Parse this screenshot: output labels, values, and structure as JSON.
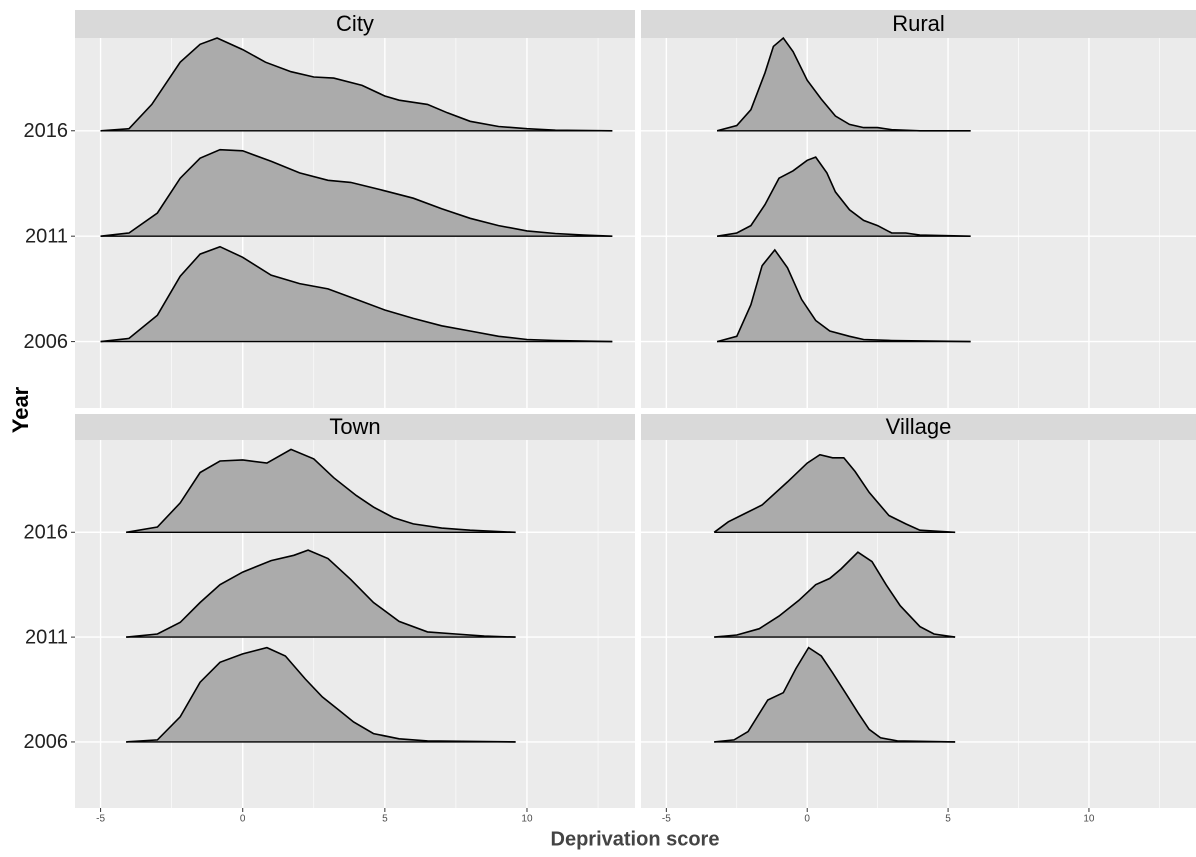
{
  "x_label": "Deprivation score",
  "y_label": "Year",
  "scales": {
    "xlim": [
      -5.9,
      13.8
    ],
    "xticks": [
      -5,
      0,
      5,
      10
    ],
    "xminor": [
      -2.5,
      2.5,
      7.5,
      12.5
    ],
    "ylim": [
      0.37,
      3.88
    ],
    "yticks": [
      {
        "value": 1,
        "label": "2006"
      },
      {
        "value": 2,
        "label": "2011"
      },
      {
        "value": 3,
        "label": "2016"
      }
    ],
    "fill": "#ababab",
    "line": "#000000"
  },
  "chart_data": [
    {
      "type": "ridgeline",
      "title": "City",
      "ridges": [
        {
          "y": 1,
          "x": [
            -5,
            -4,
            -3,
            -2.2,
            -1.5,
            -0.8,
            0,
            1,
            2,
            3,
            4,
            5,
            6,
            7,
            8,
            9,
            10,
            11,
            12,
            13
          ],
          "values": [
            0,
            0.03,
            0.25,
            0.62,
            0.83,
            0.9,
            0.8,
            0.63,
            0.55,
            0.5,
            0.4,
            0.3,
            0.22,
            0.15,
            0.1,
            0.05,
            0.02,
            0.01,
            0.005,
            0
          ]
        },
        {
          "y": 2,
          "x": [
            -5,
            -4,
            -3,
            -2.2,
            -1.5,
            -0.8,
            0,
            1,
            2,
            3,
            3.8,
            5,
            6,
            7,
            8,
            9,
            10,
            11,
            12,
            13
          ],
          "values": [
            0,
            0.03,
            0.22,
            0.55,
            0.74,
            0.82,
            0.81,
            0.71,
            0.6,
            0.53,
            0.51,
            0.43,
            0.36,
            0.26,
            0.17,
            0.1,
            0.05,
            0.025,
            0.01,
            0
          ]
        },
        {
          "y": 3,
          "x": [
            -5,
            -4,
            -3.2,
            -2.2,
            -1.5,
            -0.9,
            0,
            0.8,
            1.7,
            2.5,
            3.2,
            4.2,
            5,
            5.5,
            6.5,
            7.2,
            8,
            9,
            10,
            11,
            13
          ],
          "values": [
            0,
            0.02,
            0.25,
            0.65,
            0.82,
            0.88,
            0.77,
            0.65,
            0.56,
            0.51,
            0.5,
            0.43,
            0.33,
            0.29,
            0.25,
            0.17,
            0.09,
            0.04,
            0.02,
            0.005,
            0
          ]
        }
      ]
    },
    {
      "type": "ridgeline",
      "title": "Rural",
      "ridges": [
        {
          "y": 1,
          "x": [
            -3.2,
            -2.5,
            -2,
            -1.6,
            -1.15,
            -0.7,
            -0.2,
            0.3,
            0.8,
            1.5,
            2,
            3,
            5.8
          ],
          "values": [
            0,
            0.05,
            0.35,
            0.72,
            0.87,
            0.7,
            0.4,
            0.2,
            0.1,
            0.05,
            0.02,
            0.01,
            0
          ]
        },
        {
          "y": 2,
          "x": [
            -3.2,
            -2.5,
            -2,
            -1.5,
            -1,
            -0.5,
            0,
            0.3,
            0.7,
            1,
            1.5,
            2,
            2.5,
            3,
            3.5,
            4,
            5.8
          ],
          "values": [
            0,
            0.03,
            0.1,
            0.3,
            0.55,
            0.62,
            0.72,
            0.75,
            0.6,
            0.42,
            0.25,
            0.15,
            0.1,
            0.03,
            0.03,
            0.01,
            0
          ]
        },
        {
          "y": 3,
          "x": [
            -3.2,
            -2.5,
            -2,
            -1.5,
            -1.2,
            -0.85,
            -0.5,
            0,
            0.5,
            1,
            1.5,
            2,
            2.5,
            3,
            4,
            5.8
          ],
          "values": [
            0,
            0.05,
            0.2,
            0.55,
            0.8,
            0.88,
            0.75,
            0.48,
            0.3,
            0.14,
            0.06,
            0.03,
            0.03,
            0.01,
            0,
            0
          ]
        }
      ]
    },
    {
      "type": "ridgeline",
      "title": "Town",
      "ridges": [
        {
          "y": 1,
          "x": [
            -4.1,
            -3,
            -2.2,
            -1.5,
            -0.8,
            0,
            0.85,
            1.5,
            2.2,
            2.8,
            3.4,
            3.9,
            4.6,
            5.5,
            6.5,
            9.6
          ],
          "values": [
            0,
            0.02,
            0.24,
            0.57,
            0.76,
            0.84,
            0.9,
            0.82,
            0.6,
            0.43,
            0.3,
            0.19,
            0.08,
            0.03,
            0.01,
            0
          ]
        },
        {
          "y": 2,
          "x": [
            -4.1,
            -3,
            -2.2,
            -1.5,
            -0.8,
            0,
            1,
            1.8,
            2.3,
            3,
            3.8,
            4.6,
            5.5,
            6.5,
            7.5,
            8.5,
            9.6
          ],
          "values": [
            0,
            0.03,
            0.14,
            0.33,
            0.5,
            0.62,
            0.73,
            0.78,
            0.83,
            0.75,
            0.55,
            0.33,
            0.15,
            0.05,
            0.03,
            0.01,
            0
          ]
        },
        {
          "y": 3,
          "x": [
            -4.1,
            -3,
            -2.2,
            -1.5,
            -0.8,
            0,
            0.85,
            1.7,
            2.5,
            3.2,
            4,
            4.6,
            5.3,
            6,
            7,
            8,
            9.6
          ],
          "values": [
            0,
            0.05,
            0.28,
            0.57,
            0.68,
            0.69,
            0.66,
            0.79,
            0.7,
            0.52,
            0.35,
            0.24,
            0.14,
            0.08,
            0.04,
            0.02,
            0
          ]
        }
      ]
    },
    {
      "type": "ridgeline",
      "title": "Village",
      "ridges": [
        {
          "y": 1,
          "x": [
            -3.3,
            -2.6,
            -2.1,
            -1.4,
            -0.85,
            -0.4,
            0.05,
            0.5,
            0.9,
            1.4,
            1.8,
            2.2,
            2.6,
            3.2,
            5.25
          ],
          "values": [
            0,
            0.02,
            0.1,
            0.4,
            0.47,
            0.7,
            0.9,
            0.82,
            0.66,
            0.45,
            0.28,
            0.12,
            0.04,
            0.01,
            0
          ]
        },
        {
          "y": 2,
          "x": [
            -3.3,
            -2.5,
            -1.7,
            -1,
            -0.3,
            0.3,
            0.8,
            1.2,
            1.8,
            2.3,
            2.8,
            3.3,
            4,
            4.5,
            5.25
          ],
          "values": [
            0,
            0.02,
            0.08,
            0.2,
            0.35,
            0.5,
            0.56,
            0.65,
            0.81,
            0.72,
            0.5,
            0.3,
            0.1,
            0.03,
            0
          ]
        },
        {
          "y": 3,
          "x": [
            -3.3,
            -2.8,
            -2.2,
            -1.6,
            -0.7,
            0,
            0.45,
            0.9,
            1.3,
            1.7,
            2.2,
            2.9,
            3.5,
            4,
            5.25
          ],
          "values": [
            0,
            0.1,
            0.18,
            0.26,
            0.48,
            0.66,
            0.74,
            0.71,
            0.71,
            0.58,
            0.38,
            0.16,
            0.08,
            0.02,
            0
          ]
        }
      ]
    }
  ]
}
